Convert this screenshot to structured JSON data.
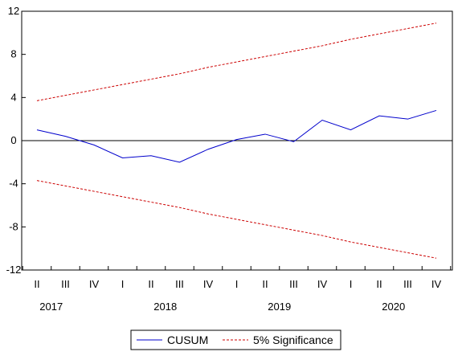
{
  "chart_data": {
    "type": "line",
    "x_quarters": [
      "II",
      "III",
      "IV",
      "I",
      "II",
      "III",
      "IV",
      "I",
      "II",
      "III",
      "IV",
      "I",
      "II",
      "III",
      "IV"
    ],
    "year_labels": [
      {
        "label": "2017",
        "quarter_index": 1
      },
      {
        "label": "2018",
        "quarter_index": 5
      },
      {
        "label": "2019",
        "quarter_index": 9
      },
      {
        "label": "2020",
        "quarter_index": 13
      }
    ],
    "ylim": [
      -12,
      12
    ],
    "yticks": [
      12,
      8,
      4,
      0,
      -4,
      -8,
      -12
    ],
    "ytick_labels": [
      "12",
      "8",
      "4",
      "0",
      "-4",
      "-8",
      "-12"
    ],
    "series": [
      {
        "name": "CUSUM",
        "color": "#0000cc",
        "style": "solid",
        "values": [
          1.0,
          0.4,
          -0.4,
          -1.6,
          -1.4,
          -2.0,
          -0.8,
          0.1,
          0.6,
          -0.1,
          1.9,
          1.0,
          2.3,
          2.0,
          2.8
        ]
      },
      {
        "name": "5% Significance",
        "color": "#cc0000",
        "style": "dashed",
        "values": [
          3.7,
          4.2,
          4.7,
          5.2,
          5.7,
          6.2,
          6.8,
          7.3,
          7.8,
          8.3,
          8.8,
          9.4,
          9.9,
          10.4,
          10.9
        ]
      },
      {
        "name": "",
        "color": "#cc0000",
        "style": "dashed",
        "values": [
          -3.7,
          -4.2,
          -4.7,
          -5.2,
          -5.7,
          -6.2,
          -6.8,
          -7.3,
          -7.8,
          -8.3,
          -8.8,
          -9.4,
          -9.9,
          -10.4,
          -10.9
        ]
      }
    ],
    "zero_line": true,
    "grid": false,
    "legend": {
      "position": "bottom-center",
      "entries": [
        "CUSUM",
        "5% Significance"
      ]
    }
  }
}
